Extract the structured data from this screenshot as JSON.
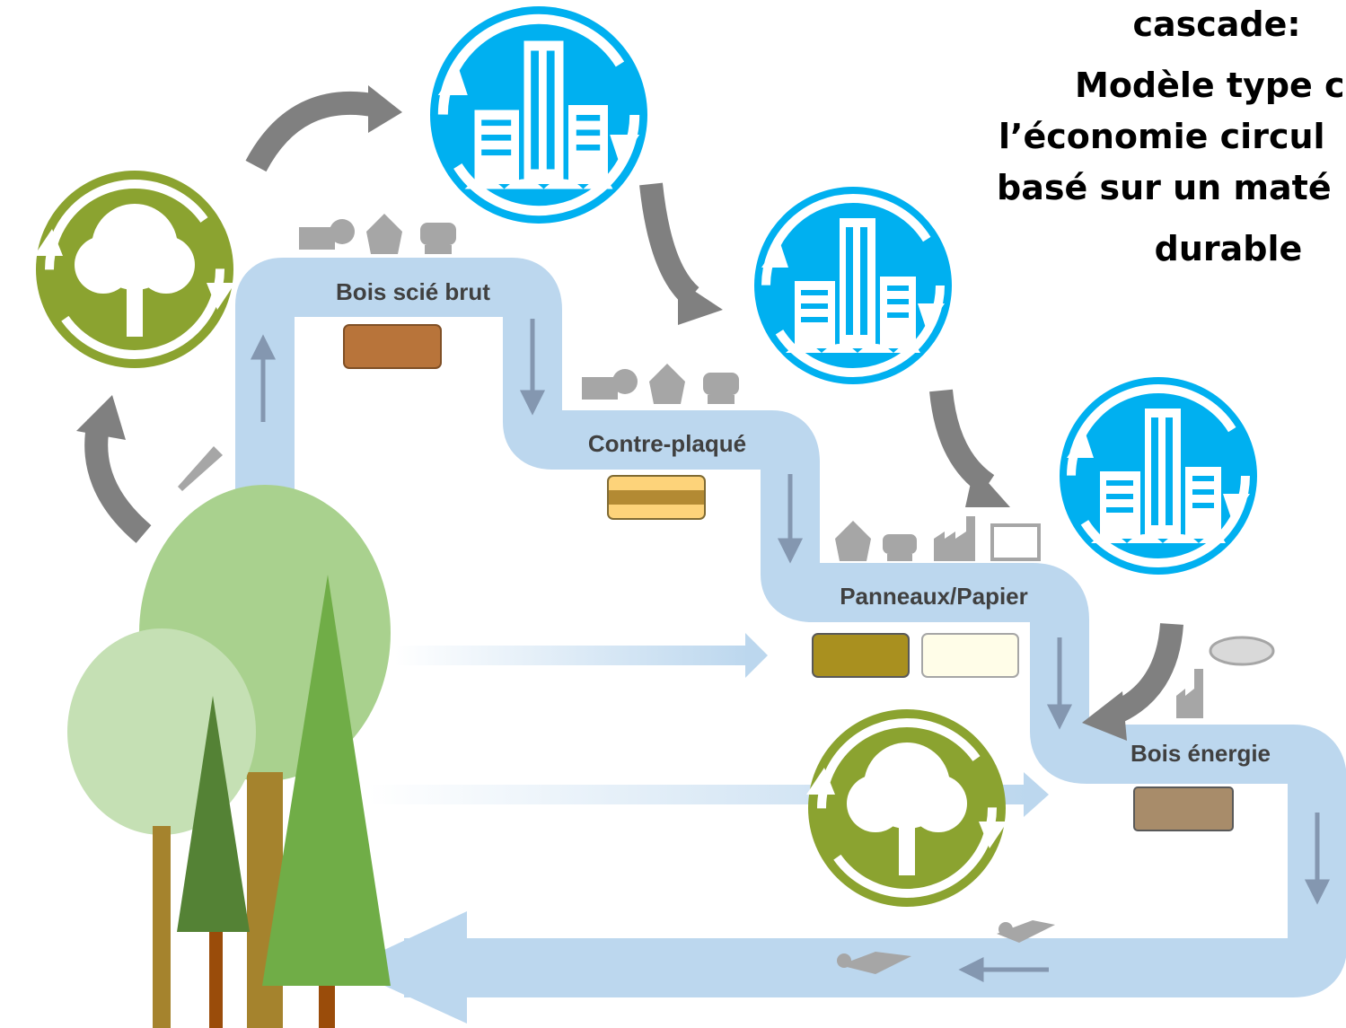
{
  "title_lines": [
    "cascade:",
    "Modèle type c",
    "l’économie circul",
    "basé sur un maté",
    "durable"
  ],
  "stages": [
    {
      "label": "Bois scié brut"
    },
    {
      "label": "Contre-plaqué"
    },
    {
      "label": "Panneaux/Papier"
    },
    {
      "label": "Bois énergie"
    }
  ]
}
